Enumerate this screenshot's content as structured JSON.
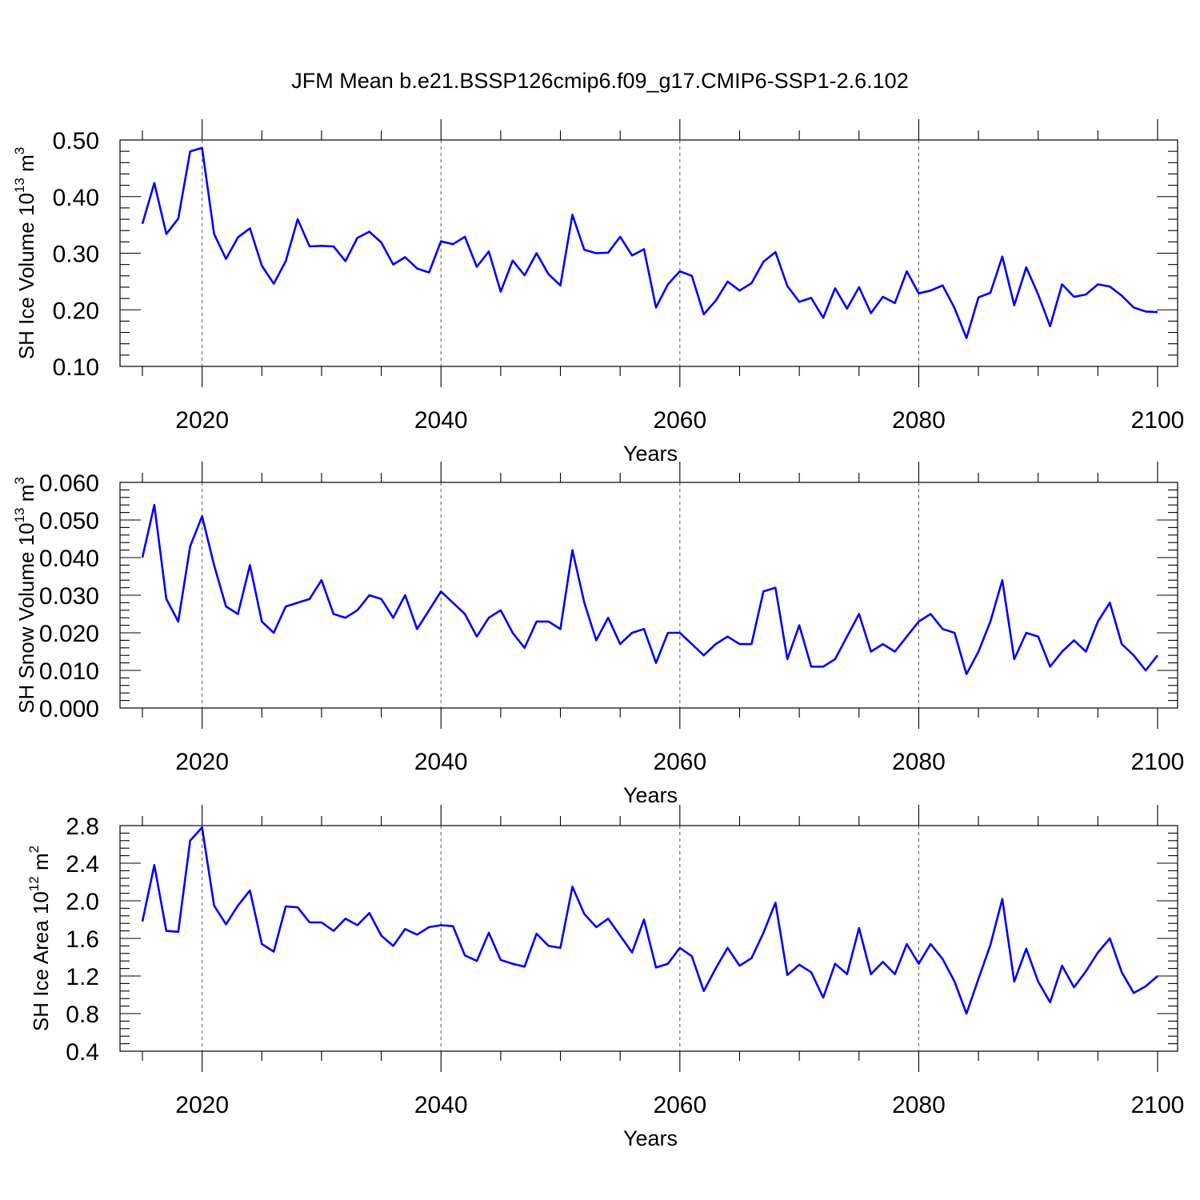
{
  "title": "JFM Mean b.e21.BSSP126cmip6.f09_g17.CMIP6-SSP1-2.6.102",
  "colors": {
    "series": "#0000ff",
    "axes": "#000000",
    "grid": "#555555"
  },
  "chart_data": [
    {
      "type": "line",
      "ylabel_main": "SH Ice Volume 10",
      "ylabel_exp": "13",
      "ylabel_unit": " m",
      "ylabel_unit_exp": "3",
      "xlabel": "Years",
      "xlim": [
        2015,
        2100
      ],
      "ylim": [
        0.1,
        0.5
      ],
      "yticks": [
        0.1,
        0.2,
        0.3,
        0.4,
        0.5
      ],
      "ytick_labels": [
        "0.10",
        "0.20",
        "0.30",
        "0.40",
        "0.50"
      ],
      "xticks": [
        2020,
        2040,
        2060,
        2080,
        2100
      ],
      "xtick_labels": [
        "2020",
        "2040",
        "2060",
        "2080",
        "2100"
      ],
      "grid": "dashed vertical at major x ticks",
      "x": [
        2015,
        2016,
        2017,
        2018,
        2019,
        2020,
        2021,
        2022,
        2023,
        2024,
        2025,
        2026,
        2027,
        2028,
        2029,
        2030,
        2031,
        2032,
        2033,
        2034,
        2035,
        2036,
        2037,
        2038,
        2039,
        2040,
        2041,
        2042,
        2043,
        2044,
        2045,
        2046,
        2047,
        2048,
        2049,
        2050,
        2051,
        2052,
        2053,
        2054,
        2055,
        2056,
        2057,
        2058,
        2059,
        2060,
        2061,
        2062,
        2063,
        2064,
        2065,
        2066,
        2067,
        2068,
        2069,
        2070,
        2071,
        2072,
        2073,
        2074,
        2075,
        2076,
        2077,
        2078,
        2079,
        2080,
        2081,
        2082,
        2083,
        2084,
        2085,
        2086,
        2087,
        2088,
        2089,
        2090,
        2091,
        2092,
        2093,
        2094,
        2095,
        2096,
        2097,
        2098,
        2099,
        2100
      ],
      "values": [
        0.352,
        0.424,
        0.334,
        0.361,
        0.48,
        0.486,
        0.334,
        0.29,
        0.328,
        0.344,
        0.278,
        0.246,
        0.286,
        0.36,
        0.312,
        0.313,
        0.312,
        0.286,
        0.327,
        0.338,
        0.319,
        0.28,
        0.293,
        0.273,
        0.266,
        0.321,
        0.316,
        0.329,
        0.276,
        0.303,
        0.232,
        0.287,
        0.261,
        0.3,
        0.263,
        0.243,
        0.368,
        0.306,
        0.3,
        0.301,
        0.329,
        0.296,
        0.307,
        0.204,
        0.245,
        0.268,
        0.26,
        0.192,
        0.216,
        0.25,
        0.234,
        0.247,
        0.285,
        0.302,
        0.242,
        0.214,
        0.221,
        0.186,
        0.238,
        0.202,
        0.24,
        0.194,
        0.223,
        0.212,
        0.268,
        0.229,
        0.234,
        0.243,
        0.203,
        0.15,
        0.222,
        0.23,
        0.294,
        0.208,
        0.275,
        0.227,
        0.171,
        0.245,
        0.223,
        0.227,
        0.245,
        0.241,
        0.225,
        0.204,
        0.197,
        0.196
      ]
    },
    {
      "type": "line",
      "ylabel_main": "SH Snow Volume 10",
      "ylabel_exp": "13",
      "ylabel_unit": " m",
      "ylabel_unit_exp": "3",
      "xlabel": "Years",
      "xlim": [
        2015,
        2100
      ],
      "ylim": [
        0.0,
        0.06
      ],
      "yticks": [
        0.0,
        0.01,
        0.02,
        0.03,
        0.04,
        0.05,
        0.06
      ],
      "ytick_labels": [
        "0.000",
        "0.010",
        "0.020",
        "0.030",
        "0.040",
        "0.050",
        "0.060"
      ],
      "xticks": [
        2020,
        2040,
        2060,
        2080,
        2100
      ],
      "xtick_labels": [
        "2020",
        "2040",
        "2060",
        "2080",
        "2100"
      ],
      "grid": "dashed vertical at major x ticks",
      "x": [
        2015,
        2016,
        2017,
        2018,
        2019,
        2020,
        2021,
        2022,
        2023,
        2024,
        2025,
        2026,
        2027,
        2028,
        2029,
        2030,
        2031,
        2032,
        2033,
        2034,
        2035,
        2036,
        2037,
        2038,
        2039,
        2040,
        2041,
        2042,
        2043,
        2044,
        2045,
        2046,
        2047,
        2048,
        2049,
        2050,
        2051,
        2052,
        2053,
        2054,
        2055,
        2056,
        2057,
        2058,
        2059,
        2060,
        2061,
        2062,
        2063,
        2064,
        2065,
        2066,
        2067,
        2068,
        2069,
        2070,
        2071,
        2072,
        2073,
        2074,
        2075,
        2076,
        2077,
        2078,
        2079,
        2080,
        2081,
        2082,
        2083,
        2084,
        2085,
        2086,
        2087,
        2088,
        2089,
        2090,
        2091,
        2092,
        2093,
        2094,
        2095,
        2096,
        2097,
        2098,
        2099,
        2100
      ],
      "values": [
        0.04,
        0.054,
        0.029,
        0.023,
        0.043,
        0.051,
        0.038,
        0.027,
        0.025,
        0.038,
        0.023,
        0.02,
        0.027,
        0.028,
        0.029,
        0.034,
        0.025,
        0.024,
        0.026,
        0.03,
        0.029,
        0.024,
        0.03,
        0.021,
        0.026,
        0.031,
        0.028,
        0.025,
        0.019,
        0.024,
        0.026,
        0.02,
        0.016,
        0.023,
        0.023,
        0.021,
        0.042,
        0.028,
        0.018,
        0.024,
        0.017,
        0.02,
        0.021,
        0.012,
        0.02,
        0.02,
        0.017,
        0.014,
        0.017,
        0.019,
        0.017,
        0.017,
        0.031,
        0.032,
        0.013,
        0.022,
        0.011,
        0.011,
        0.013,
        0.019,
        0.025,
        0.015,
        0.017,
        0.015,
        0.019,
        0.023,
        0.025,
        0.021,
        0.02,
        0.009,
        0.015,
        0.023,
        0.034,
        0.013,
        0.02,
        0.019,
        0.011,
        0.015,
        0.018,
        0.015,
        0.023,
        0.028,
        0.017,
        0.014,
        0.01,
        0.014
      ]
    },
    {
      "type": "line",
      "ylabel_main": "SH Ice Area 10",
      "ylabel_exp": "12",
      "ylabel_unit": " m",
      "ylabel_unit_exp": "2",
      "xlabel": "Years",
      "xlim": [
        2015,
        2100
      ],
      "ylim": [
        0.4,
        2.8
      ],
      "yticks": [
        0.4,
        0.8,
        1.2,
        1.6,
        2.0,
        2.4,
        2.8
      ],
      "ytick_labels": [
        "0.4",
        "0.8",
        "1.2",
        "1.6",
        "2.0",
        "2.4",
        "2.8"
      ],
      "xticks": [
        2020,
        2040,
        2060,
        2080,
        2100
      ],
      "xtick_labels": [
        "2020",
        "2040",
        "2060",
        "2080",
        "2100"
      ],
      "grid": "dashed vertical at major x ticks",
      "x": [
        2015,
        2016,
        2017,
        2018,
        2019,
        2020,
        2021,
        2022,
        2023,
        2024,
        2025,
        2026,
        2027,
        2028,
        2029,
        2030,
        2031,
        2032,
        2033,
        2034,
        2035,
        2036,
        2037,
        2038,
        2039,
        2040,
        2041,
        2042,
        2043,
        2044,
        2045,
        2046,
        2047,
        2048,
        2049,
        2050,
        2051,
        2052,
        2053,
        2054,
        2055,
        2056,
        2057,
        2058,
        2059,
        2060,
        2061,
        2062,
        2063,
        2064,
        2065,
        2066,
        2067,
        2068,
        2069,
        2070,
        2071,
        2072,
        2073,
        2074,
        2075,
        2076,
        2077,
        2078,
        2079,
        2080,
        2081,
        2082,
        2083,
        2084,
        2085,
        2086,
        2087,
        2088,
        2089,
        2090,
        2091,
        2092,
        2093,
        2094,
        2095,
        2096,
        2097,
        2098,
        2099,
        2100
      ],
      "values": [
        1.78,
        2.38,
        1.68,
        1.67,
        2.64,
        2.78,
        1.95,
        1.75,
        1.95,
        2.11,
        1.54,
        1.46,
        1.94,
        1.93,
        1.77,
        1.77,
        1.68,
        1.81,
        1.74,
        1.87,
        1.63,
        1.52,
        1.7,
        1.64,
        1.72,
        1.74,
        1.73,
        1.42,
        1.36,
        1.66,
        1.37,
        1.33,
        1.3,
        1.65,
        1.52,
        1.5,
        2.15,
        1.86,
        1.72,
        1.81,
        1.63,
        1.45,
        1.8,
        1.29,
        1.33,
        1.5,
        1.41,
        1.04,
        1.28,
        1.5,
        1.31,
        1.39,
        1.66,
        1.98,
        1.21,
        1.32,
        1.24,
        0.97,
        1.33,
        1.22,
        1.71,
        1.22,
        1.35,
        1.22,
        1.54,
        1.33,
        1.54,
        1.38,
        1.14,
        0.8,
        1.17,
        1.53,
        2.02,
        1.14,
        1.49,
        1.14,
        0.92,
        1.31,
        1.08,
        1.25,
        1.45,
        1.6,
        1.24,
        1.02,
        1.09,
        1.2
      ]
    }
  ]
}
